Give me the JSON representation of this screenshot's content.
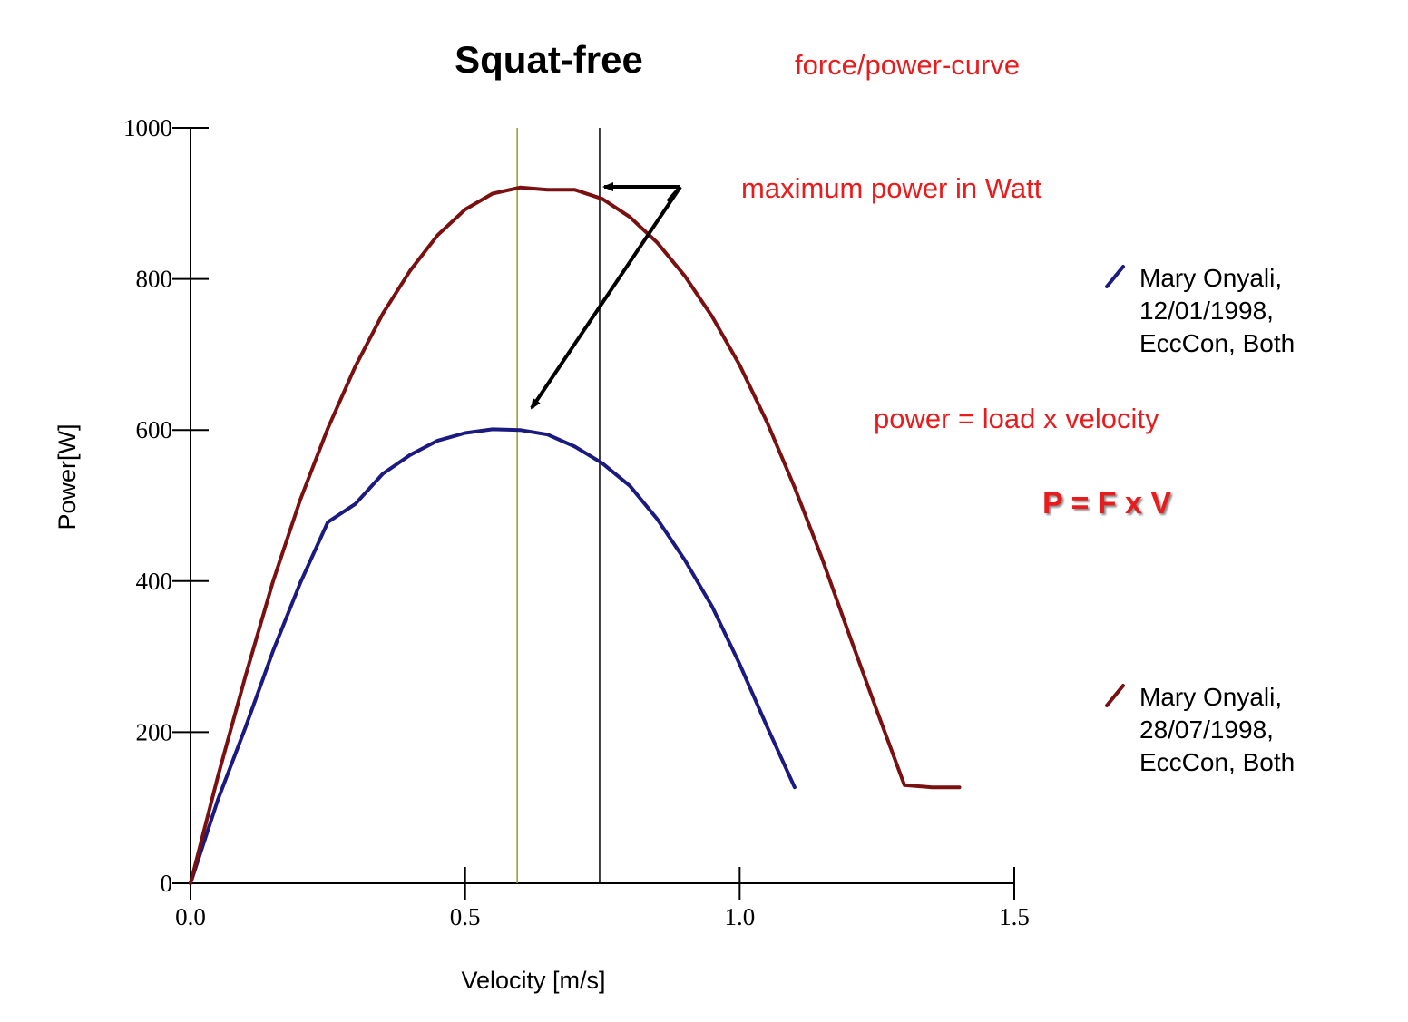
{
  "chart_data": {
    "type": "line",
    "title": "Squat-free",
    "subtitle": "force/power-curve",
    "xlabel": "Velocity [m/s]",
    "ylabel": "Power[W]",
    "xlim": [
      0,
      1.5
    ],
    "ylim": [
      0,
      1000
    ],
    "xticks": [
      "0.0",
      "0.5",
      "1.0",
      "1.5"
    ],
    "yticks": [
      "0",
      "200",
      "400",
      "600",
      "800",
      "1000"
    ],
    "grid": false,
    "legend_position": "right",
    "series": [
      {
        "name": "Mary Onyali, 12/01/1998, EccCon, Both",
        "legend_lines": [
          "Mary  Onyali,",
          "12/01/1998,",
          "EccCon, Both"
        ],
        "color": "#1a1a80",
        "x": [
          0,
          0.05,
          0.1,
          0.15,
          0.2,
          0.25,
          0.3,
          0.35,
          0.4,
          0.45,
          0.5,
          0.55,
          0.6,
          0.65,
          0.7,
          0.75,
          0.8,
          0.85,
          0.9,
          0.95,
          1.0,
          1.05,
          1.1
        ],
        "y": [
          0,
          111,
          206,
          307,
          398,
          478,
          502,
          542,
          567,
          586,
          596,
          601,
          600,
          594,
          578,
          556,
          526,
          482,
          428,
          366,
          290,
          207,
          127
        ]
      },
      {
        "name": "Mary Onyali, 28/07/1998, EccCon, Both",
        "legend_lines": [
          "Mary  Onyali,",
          "28/07/1998,",
          "EccCon, Both"
        ],
        "color": "#7a1010",
        "x": [
          0,
          0.05,
          0.1,
          0.15,
          0.2,
          0.25,
          0.3,
          0.35,
          0.4,
          0.45,
          0.5,
          0.55,
          0.6,
          0.65,
          0.7,
          0.75,
          0.8,
          0.85,
          0.9,
          0.95,
          1.0,
          1.05,
          1.1,
          1.15,
          1.2,
          1.25,
          1.3,
          1.35,
          1.4
        ],
        "y": [
          0,
          142,
          274,
          399,
          508,
          602,
          684,
          754,
          811,
          858,
          892,
          913,
          921,
          918,
          918,
          906,
          882,
          848,
          804,
          750,
          686,
          610,
          524,
          430,
          328,
          228,
          130,
          127,
          127
        ]
      }
    ],
    "vertical_lines": [
      {
        "x": 0.595,
        "color": "#9a9a20"
      },
      {
        "x": 0.745,
        "color": "#000000"
      }
    ],
    "annotations": {
      "max_power": "maximum power in Watt",
      "power_eq": "power = load x velocity",
      "formula": "P = F x V"
    }
  }
}
